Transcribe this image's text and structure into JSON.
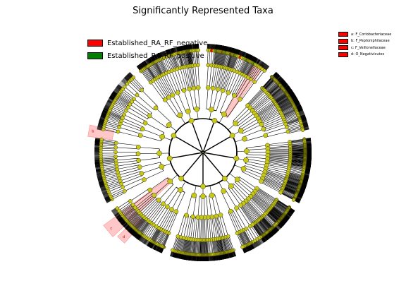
{
  "title": "Significantly Represented Taxa",
  "colors": {
    "negative": "#ff0000",
    "positive": "#008000",
    "neutral_node": "#c8c81a",
    "highlight": "#ff0000"
  },
  "legend": [
    {
      "label": "Established_RA_RF_negative",
      "color": "#ff0000"
    },
    {
      "label": "Established_RA_RF_positive",
      "color": "#008000"
    }
  ],
  "clade_key": [
    {
      "letter": "a",
      "label": "a: F_Coriobacteriaceae"
    },
    {
      "letter": "b",
      "label": "b: F_Peptoniphilaceae"
    },
    {
      "letter": "c",
      "label": "c: F_Veillonellaceae"
    },
    {
      "letter": "d",
      "label": "d: O_Negativicutes"
    }
  ]
}
